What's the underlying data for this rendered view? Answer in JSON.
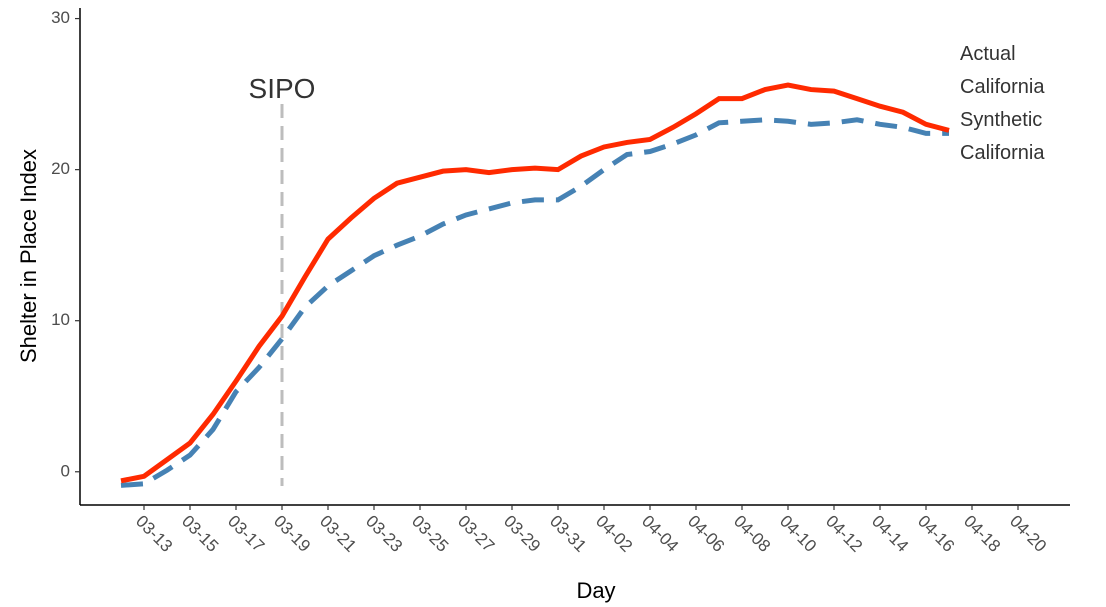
{
  "chart_data": {
    "type": "line",
    "x_label": "Day",
    "y_label": "Shelter in Place Index",
    "categories": [
      null,
      "03-13",
      null,
      "03-15",
      null,
      "03-17",
      null,
      "03-19",
      null,
      "03-21",
      null,
      "03-23",
      null,
      "03-25",
      null,
      "03-27",
      null,
      "03-29",
      null,
      "03-31",
      null,
      "04-02",
      null,
      "04-04",
      null,
      "04-06",
      null,
      "04-08",
      null,
      "04-10",
      null,
      "04-12",
      null,
      "04-14",
      null,
      "04-16",
      null,
      "04-18",
      null,
      "04-20"
    ],
    "series": [
      {
        "name": "Actual California",
        "color": "#ff2a00",
        "dash": false,
        "values": [
          -0.6,
          -0.3,
          0.8,
          1.9,
          3.8,
          6.0,
          8.3,
          10.3,
          12.9,
          15.4,
          16.8,
          18.1,
          19.1,
          19.5,
          19.9,
          20.0,
          19.8,
          20.0,
          20.1,
          20.0,
          20.9,
          21.5,
          21.8,
          22.0,
          22.8,
          23.7,
          24.7,
          24.7,
          25.3,
          25.6,
          25.3,
          25.2,
          24.7,
          24.2,
          23.8,
          23.0,
          22.6,
          null,
          null,
          null
        ]
      },
      {
        "name": "Synthetic California",
        "color": "#4682b4",
        "dash": true,
        "values": [
          -0.9,
          -0.8,
          0.1,
          1.1,
          2.8,
          5.3,
          6.9,
          8.8,
          10.9,
          12.3,
          13.3,
          14.3,
          15.0,
          15.6,
          16.4,
          17.0,
          17.4,
          17.8,
          18.0,
          18.0,
          18.9,
          20.0,
          21.0,
          21.2,
          21.7,
          22.3,
          23.1,
          23.2,
          23.3,
          23.2,
          23.0,
          23.1,
          23.3,
          23.0,
          22.8,
          22.4,
          22.4,
          null,
          null,
          null
        ]
      }
    ],
    "annotations": [
      {
        "text": "SIPO",
        "x": "03-19"
      }
    ],
    "ylim": [
      -2.2,
      30.7
    ],
    "yticks": [
      0,
      10,
      20,
      30
    ],
    "grid": false
  }
}
